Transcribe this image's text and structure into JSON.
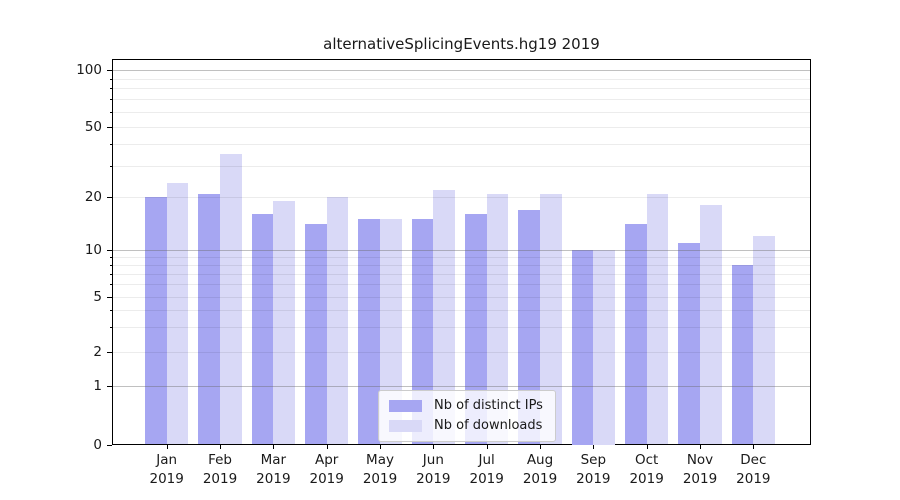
{
  "title": "alternativeSplicingEvents.hg19 2019",
  "chart_data": {
    "type": "bar",
    "title": "alternativeSplicingEvents.hg19 2019",
    "categories": [
      "Jan 2019",
      "Feb 2019",
      "Mar 2019",
      "Apr 2019",
      "May 2019",
      "Jun 2019",
      "Jul 2019",
      "Aug 2019",
      "Sep 2019",
      "Oct 2019",
      "Nov 2019",
      "Dec 2019"
    ],
    "x_tick_line1": [
      "Jan",
      "Feb",
      "Mar",
      "Apr",
      "May",
      "Jun",
      "Jul",
      "Aug",
      "Sep",
      "Oct",
      "Nov",
      "Dec"
    ],
    "x_tick_line2": [
      "2019",
      "2019",
      "2019",
      "2019",
      "2019",
      "2019",
      "2019",
      "2019",
      "2019",
      "2019",
      "2019",
      "2019"
    ],
    "series": [
      {
        "name": "Nb of distinct IPs",
        "color": "#a6a6f2",
        "values": [
          20,
          21,
          16,
          14,
          15,
          15,
          16,
          17,
          10,
          14,
          11,
          8
        ]
      },
      {
        "name": "Nb of downloads",
        "color": "#d9d9f7",
        "values": [
          24,
          35,
          19,
          20,
          15,
          22,
          21,
          21,
          10,
          21,
          18,
          12
        ]
      }
    ],
    "xlabel": "",
    "ylabel": "",
    "yscale": "symlog",
    "ylim": [
      0,
      113
    ],
    "y_tick_labels": [
      "100",
      "50",
      "20",
      "10",
      "5",
      "2",
      "1",
      "0"
    ],
    "y_tick_values": [
      100,
      50,
      20,
      10,
      5,
      2,
      1,
      0
    ],
    "y_major_grid_values": [
      100,
      10,
      1
    ],
    "y_minor_grid_values": [
      2,
      3,
      4,
      5,
      6,
      7,
      8,
      9,
      20,
      30,
      40,
      50,
      60,
      70,
      80,
      90
    ],
    "grid": true,
    "legend_position": "lower center",
    "legend_entries": [
      "Nb of distinct IPs",
      "Nb of downloads"
    ]
  },
  "colors": {
    "bar_dark": "#a6a6f2",
    "bar_light": "#d9d9f7",
    "axis": "#000000",
    "major_grid": "#b5b5b5",
    "minor_grid": "#ebebeb",
    "legend_border": "#cccccc",
    "background": "#ffffff"
  }
}
